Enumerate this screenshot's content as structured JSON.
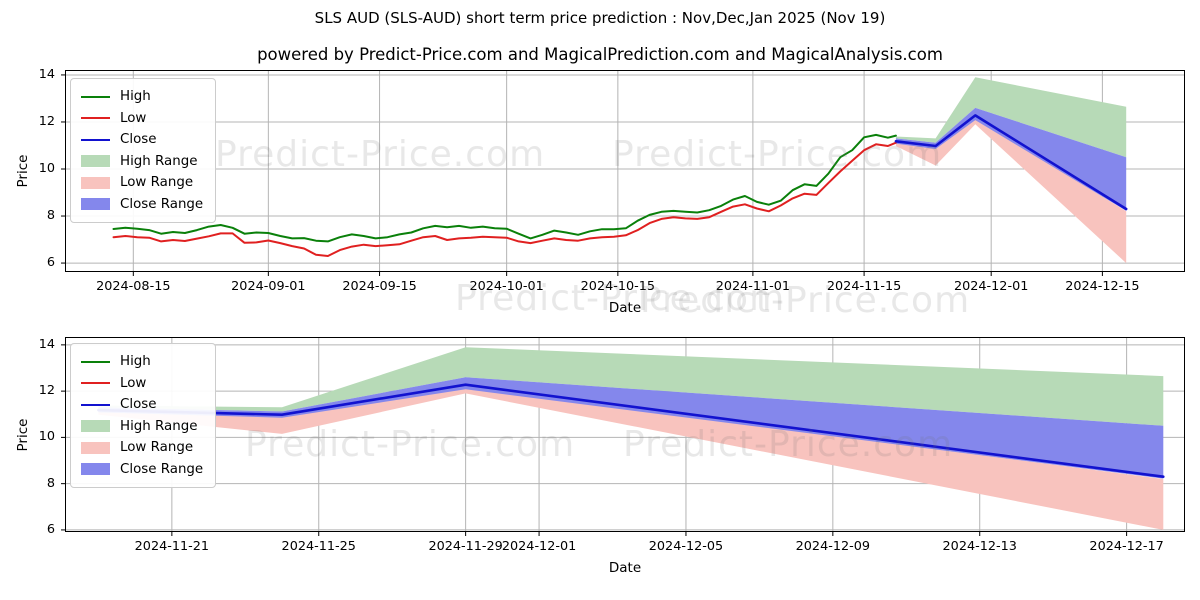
{
  "title": "SLS AUD (SLS-AUD) short term price prediction : Nov,Dec,Jan 2025 (Nov 19)",
  "subtitle": "powered by Predict-Price.com and MagicalPrediction.com and MagicalAnalysis.com",
  "watermark": {
    "text": "Predict-Price.com"
  },
  "colors": {
    "high_line": "#0a800a",
    "low_line": "#e02020",
    "close_line": "#1212cf",
    "high_band": "#b7dab7",
    "low_band": "#f8c3be",
    "close_band": "#8487ec",
    "grid": "#b4b4b4",
    "spine": "#000000"
  },
  "legend": [
    {
      "label": "High",
      "type": "line",
      "color": "#0a800a"
    },
    {
      "label": "Low",
      "type": "line",
      "color": "#e02020"
    },
    {
      "label": "Close",
      "type": "line",
      "color": "#1212cf"
    },
    {
      "label": "High Range",
      "type": "patch",
      "color": "#b7dab7"
    },
    {
      "label": "Low Range",
      "type": "patch",
      "color": "#f8c3be"
    },
    {
      "label": "Close Range",
      "type": "patch",
      "color": "#8487ec"
    }
  ],
  "chart_data": [
    {
      "type": "line",
      "name": "history-and-forecast",
      "xlabel": "Date",
      "ylabel": "Price",
      "xlim": [
        -8.6,
        132.4
      ],
      "ylim": [
        5.62,
        14.21
      ],
      "yticks": [
        6,
        8,
        10,
        12,
        14
      ],
      "xticks": [
        {
          "v": 0,
          "label": "2024-08-15"
        },
        {
          "v": 17,
          "label": "2024-09-01"
        },
        {
          "v": 31,
          "label": "2024-09-15"
        },
        {
          "v": 47,
          "label": "2024-10-01"
        },
        {
          "v": 61,
          "label": "2024-10-15"
        },
        {
          "v": 78,
          "label": "2024-11-01"
        },
        {
          "v": 92,
          "label": "2024-11-15"
        },
        {
          "v": 108,
          "label": "2024-12-01"
        },
        {
          "v": 122,
          "label": "2024-12-15"
        }
      ],
      "grid": true,
      "legend_position": "upper left",
      "x_unit": "days since 2024-08-15",
      "bands": [
        {
          "name": "High Range",
          "color": "#b7dab7",
          "x": [
            96,
            101,
            106,
            125
          ],
          "lo": [
            11.3,
            11.12,
            12.6,
            10.5
          ],
          "hi": [
            11.38,
            11.3,
            13.9,
            12.65
          ]
        },
        {
          "name": "Low Range",
          "color": "#f8c3be",
          "x": [
            96,
            101,
            106,
            125
          ],
          "lo": [
            10.98,
            10.15,
            11.9,
            6.0
          ],
          "hi": [
            11.12,
            10.95,
            12.15,
            8.2
          ]
        },
        {
          "name": "Close Range",
          "color": "#8487ec",
          "x": [
            96,
            101,
            106,
            125
          ],
          "lo": [
            11.08,
            10.85,
            12.08,
            8.22
          ],
          "hi": [
            11.3,
            11.12,
            12.6,
            10.5
          ]
        }
      ],
      "series": [
        {
          "name": "High",
          "color": "#0a800a",
          "width": 2,
          "x": [
            -2.5,
            -1,
            0.5,
            2,
            3.5,
            5,
            6.5,
            8,
            9.5,
            11,
            12.5,
            14,
            15.5,
            17,
            18.5,
            20,
            21.5,
            23,
            24.5,
            26,
            27.5,
            29,
            30.5,
            32,
            33.5,
            35,
            36.5,
            38,
            39.5,
            41,
            42.5,
            44,
            45.5,
            47,
            48.5,
            50,
            51.5,
            53,
            54.5,
            56,
            57.5,
            59,
            60.5,
            62,
            63.5,
            65,
            66.5,
            68,
            69.5,
            71,
            72.5,
            74,
            75.5,
            77,
            78.5,
            80,
            81.5,
            83,
            84.5,
            86,
            87.5,
            89,
            90.5,
            92,
            93.5,
            95,
            96
          ],
          "y": [
            7.45,
            7.5,
            7.46,
            7.4,
            7.25,
            7.32,
            7.28,
            7.4,
            7.55,
            7.62,
            7.5,
            7.25,
            7.3,
            7.28,
            7.15,
            7.05,
            7.06,
            6.95,
            6.92,
            7.1,
            7.22,
            7.15,
            7.05,
            7.1,
            7.22,
            7.3,
            7.48,
            7.58,
            7.52,
            7.58,
            7.5,
            7.55,
            7.48,
            7.46,
            7.25,
            7.05,
            7.2,
            7.38,
            7.3,
            7.2,
            7.35,
            7.44,
            7.44,
            7.48,
            7.8,
            8.05,
            8.18,
            8.22,
            8.18,
            8.15,
            8.25,
            8.43,
            8.7,
            8.85,
            8.6,
            8.48,
            8.65,
            9.1,
            9.35,
            9.28,
            9.8,
            10.5,
            10.8,
            11.35,
            11.45,
            11.33,
            11.42
          ]
        },
        {
          "name": "Low",
          "color": "#e02020",
          "width": 2,
          "x": [
            -2.5,
            -1,
            0.5,
            2,
            3.5,
            5,
            6.5,
            8,
            9.5,
            11,
            12.5,
            14,
            15.5,
            17,
            18.5,
            20,
            21.5,
            23,
            24.5,
            26,
            27.5,
            29,
            30.5,
            32,
            33.5,
            35,
            36.5,
            38,
            39.5,
            41,
            42.5,
            44,
            45.5,
            47,
            48.5,
            50,
            51.5,
            53,
            54.5,
            56,
            57.5,
            59,
            60.5,
            62,
            63.5,
            65,
            66.5,
            68,
            69.5,
            71,
            72.5,
            74,
            75.5,
            77,
            78.5,
            80,
            81.5,
            83,
            84.5,
            86,
            87.5,
            89,
            90.5,
            92,
            93.5,
            95,
            96
          ],
          "y": [
            7.1,
            7.15,
            7.1,
            7.08,
            6.92,
            6.98,
            6.94,
            7.04,
            7.14,
            7.26,
            7.26,
            6.86,
            6.88,
            6.96,
            6.85,
            6.72,
            6.62,
            6.35,
            6.3,
            6.55,
            6.7,
            6.78,
            6.72,
            6.76,
            6.8,
            6.95,
            7.1,
            7.15,
            6.98,
            7.05,
            7.08,
            7.12,
            7.1,
            7.08,
            6.92,
            6.85,
            6.95,
            7.05,
            6.98,
            6.95,
            7.05,
            7.1,
            7.12,
            7.18,
            7.4,
            7.7,
            7.88,
            7.95,
            7.9,
            7.88,
            7.95,
            8.18,
            8.4,
            8.5,
            8.32,
            8.2,
            8.45,
            8.75,
            8.95,
            8.9,
            9.4,
            9.9,
            10.35,
            10.8,
            11.05,
            10.98,
            11.12
          ]
        },
        {
          "name": "Close",
          "color": "#1212cf",
          "width": 2.6,
          "x": [
            96,
            101,
            106,
            125
          ],
          "y": [
            11.18,
            10.98,
            12.28,
            8.3
          ]
        }
      ]
    },
    {
      "type": "line",
      "name": "forecast-zoom",
      "xlabel": "Date",
      "ylabel": "Price",
      "xlim": [
        -0.91,
        29.59
      ],
      "ylim": [
        5.91,
        14.34
      ],
      "yticks": [
        6,
        8,
        10,
        12,
        14
      ],
      "xticks": [
        {
          "v": 2,
          "label": "2024-11-21"
        },
        {
          "v": 6,
          "label": "2024-11-25"
        },
        {
          "v": 10,
          "label": "2024-11-29"
        },
        {
          "v": 12,
          "label": "2024-12-01"
        },
        {
          "v": 16,
          "label": "2024-12-05"
        },
        {
          "v": 20,
          "label": "2024-12-09"
        },
        {
          "v": 24,
          "label": "2024-12-13"
        },
        {
          "v": 28,
          "label": "2024-12-17"
        }
      ],
      "grid": true,
      "legend_position": "upper left",
      "x_unit": "days since 2024-11-19",
      "bands": [
        {
          "name": "High Range",
          "color": "#b7dab7",
          "x": [
            0,
            5,
            10,
            29
          ],
          "lo": [
            11.3,
            11.12,
            12.6,
            10.5
          ],
          "hi": [
            11.38,
            11.3,
            13.9,
            12.65
          ]
        },
        {
          "name": "Low Range",
          "color": "#f8c3be",
          "x": [
            0,
            5,
            10,
            29
          ],
          "lo": [
            10.98,
            10.15,
            11.9,
            6.0
          ],
          "hi": [
            11.12,
            10.95,
            12.15,
            8.2
          ]
        },
        {
          "name": "Close Range",
          "color": "#8487ec",
          "x": [
            0,
            5,
            10,
            29
          ],
          "lo": [
            11.08,
            10.85,
            12.08,
            8.22
          ],
          "hi": [
            11.3,
            11.12,
            12.6,
            10.5
          ]
        }
      ],
      "series": [
        {
          "name": "Close",
          "color": "#1212cf",
          "width": 2.6,
          "x": [
            0,
            5,
            10,
            29
          ],
          "y": [
            11.18,
            10.98,
            12.28,
            8.3
          ]
        }
      ]
    }
  ]
}
